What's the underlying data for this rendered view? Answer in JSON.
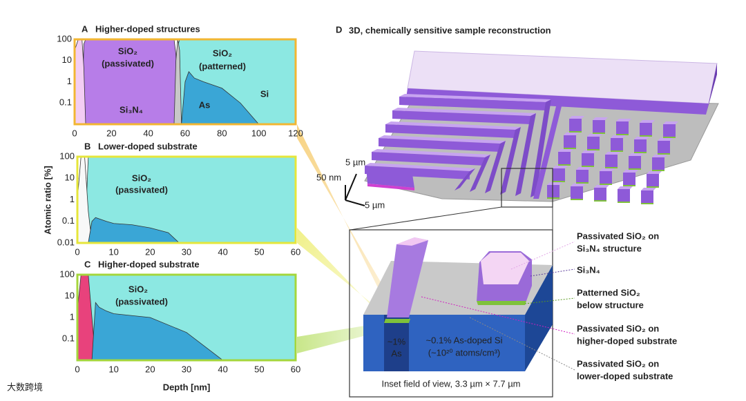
{
  "chart_data": [
    {
      "type": "area",
      "panel": "A",
      "title": "Higher-doped structures",
      "frame_color": "#f2b632",
      "log_y": true,
      "xlim": [
        0,
        120
      ],
      "xticks": [
        0,
        20,
        40,
        60,
        80,
        100,
        120
      ],
      "ylim": [
        0.01,
        100
      ],
      "yticks": [
        100,
        10,
        1,
        0.1
      ],
      "x": [
        0,
        2,
        4,
        5,
        6,
        8,
        10,
        20,
        30,
        40,
        50,
        54,
        55,
        56,
        57,
        58,
        60,
        62,
        65,
        70,
        80,
        90,
        100,
        110,
        120
      ],
      "series": [
        {
          "name": "Si",
          "color": "#8ce8e2",
          "label_color": "#1f8a5a",
          "values": [
            null,
            null,
            null,
            null,
            null,
            null,
            null,
            null,
            null,
            null,
            null,
            null,
            0.01,
            50,
            100,
            100,
            100,
            100,
            100,
            100,
            100,
            100,
            100,
            100,
            100
          ]
        },
        {
          "name": "Si₃N₄",
          "color": "#b77de8",
          "label_color": "#6a1fb0",
          "values": [
            null,
            null,
            0.01,
            60,
            100,
            100,
            100,
            100,
            100,
            100,
            100,
            100,
            20,
            0.01,
            null,
            null,
            null,
            null,
            null,
            null,
            null,
            null,
            null,
            null,
            null
          ]
        },
        {
          "name": "SiO₂",
          "note": "(patterned)",
          "color": "#c8c8c8",
          "label_color": "#3cb43c",
          "values": [
            null,
            null,
            null,
            null,
            null,
            null,
            null,
            null,
            null,
            null,
            null,
            0.01,
            10,
            100,
            30,
            0.01,
            null,
            null,
            null,
            null,
            null,
            null,
            null,
            null,
            null
          ]
        },
        {
          "name": "SiO₂",
          "note": "(passivated)",
          "color": "#f3cdf3",
          "label_color": "#ffffff",
          "values": [
            30,
            100,
            100,
            5,
            0.01,
            null,
            null,
            null,
            null,
            null,
            null,
            null,
            null,
            null,
            null,
            null,
            null,
            null,
            null,
            null,
            null,
            null,
            null,
            null,
            null
          ]
        },
        {
          "name": "As",
          "color": "#3aa6d6",
          "label_color": "#202020",
          "values": [
            null,
            null,
            null,
            null,
            null,
            null,
            null,
            null,
            null,
            null,
            null,
            null,
            null,
            null,
            null,
            0.01,
            1,
            3,
            1.5,
            1,
            0.5,
            0.1,
            0.01,
            null,
            null
          ]
        }
      ]
    },
    {
      "type": "area",
      "panel": "B",
      "title": "Lower-doped substrate",
      "frame_color": "#e6e63a",
      "log_y": true,
      "ylabel": "Atomic ratio [%]",
      "xlim": [
        0,
        60
      ],
      "xticks": [
        0,
        10,
        20,
        30,
        40,
        50,
        60
      ],
      "ylim": [
        0.01,
        100
      ],
      "yticks": [
        100,
        10,
        1,
        0.1,
        0.01
      ],
      "x": [
        0,
        1,
        2,
        3,
        4,
        5,
        8,
        10,
        15,
        20,
        25,
        28,
        30,
        40,
        50,
        60
      ],
      "series": [
        {
          "color": "#8ce8e2",
          "values": [
            null,
            null,
            0.01,
            100,
            100,
            100,
            100,
            100,
            100,
            100,
            100,
            100,
            100,
            100,
            100,
            100
          ]
        },
        {
          "name": "SiO₂",
          "note": "(passivated)",
          "color": "#f8f8f8",
          "label_color": "#f0f0f0",
          "values": [
            1,
            100,
            100,
            0.3,
            0.01,
            null,
            null,
            null,
            null,
            null,
            null,
            null,
            null,
            null,
            null,
            null
          ]
        },
        {
          "color": "#3aa6d6",
          "values": [
            null,
            null,
            null,
            0.01,
            0.1,
            0.15,
            0.1,
            0.08,
            0.07,
            0.05,
            0.03,
            0.01,
            null,
            null,
            null,
            null
          ]
        }
      ]
    },
    {
      "type": "area",
      "panel": "C",
      "title": "Higher-doped substrate",
      "frame_color": "#a4d63c",
      "log_y": true,
      "xlabel": "Depth [nm]",
      "xlim": [
        0,
        60
      ],
      "xticks": [
        0,
        10,
        20,
        30,
        40,
        50,
        60
      ],
      "ylim": [
        0.01,
        100
      ],
      "yticks": [
        100,
        10,
        1,
        0.1
      ],
      "x": [
        0,
        1,
        2,
        3,
        4,
        5,
        6,
        8,
        10,
        20,
        30,
        40,
        50,
        60
      ],
      "series": [
        {
          "color": "#8ce8e2",
          "values": [
            null,
            null,
            0.01,
            100,
            100,
            100,
            100,
            100,
            100,
            100,
            100,
            100,
            100,
            100
          ]
        },
        {
          "name": "SiO₂",
          "note": "(passivated)",
          "color": "#e8427c",
          "label_color": "#e0206e",
          "values": [
            2,
            100,
            100,
            100,
            1,
            0.01,
            null,
            null,
            null,
            null,
            null,
            null,
            null,
            null
          ]
        },
        {
          "color": "#3aa6d6",
          "values": [
            null,
            null,
            null,
            null,
            0.01,
            5,
            3,
            2,
            1.5,
            1,
            0.2,
            0.01,
            null,
            null
          ]
        }
      ]
    }
  ],
  "panel_d": {
    "label": "D",
    "title": "3D, chemically sensitive sample reconstruction",
    "scale": [
      "5 µm",
      "50 nm",
      "5 µm"
    ],
    "inset": {
      "as_peak": [
        "~1%",
        "As"
      ],
      "substrate": [
        "~0.1% As-doped Si",
        "(~10²⁰ atoms/cm³)"
      ],
      "caption": "Inset field of view, 3.3 µm × 7.7 µm"
    },
    "callouts": [
      {
        "lines": [
          "Passivated SiO₂ on",
          "Si₃N₄ structure"
        ],
        "color": "#e2a6e6"
      },
      {
        "lines": [
          "Si₃N₄"
        ],
        "color": "#5a3a9a"
      },
      {
        "lines": [
          "Patterned SiO₂",
          "below structure"
        ],
        "color": "#5a9a20"
      },
      {
        "lines": [
          "Passivated SiO₂ on",
          "higher-doped substrate"
        ],
        "color": "#d020c0"
      },
      {
        "lines": [
          "Passivated SiO₂ on",
          "lower-doped substrate"
        ],
        "color": "#888888"
      }
    ]
  },
  "watermark": "大数跨境"
}
